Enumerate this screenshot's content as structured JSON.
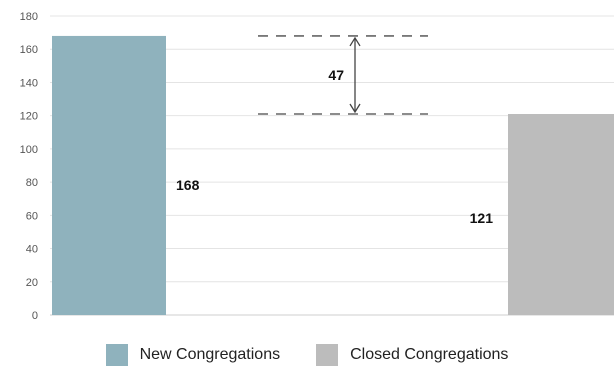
{
  "chart_data": {
    "type": "bar",
    "categories": [
      "New Congregations",
      "Closed Congregations"
    ],
    "values": [
      168,
      121
    ],
    "data_labels": [
      "168",
      "121"
    ],
    "colors": [
      "#8fb2bd",
      "#bcbcbc"
    ],
    "ylim": [
      0,
      180
    ],
    "yticks": [
      "0",
      "20",
      "40",
      "60",
      "80",
      "100",
      "120",
      "140",
      "160",
      "180"
    ],
    "grid": true,
    "legend": {
      "position": "bottom",
      "items": [
        {
          "label": "New Congregations",
          "color": "#8fb2bd"
        },
        {
          "label": "Closed Congregations",
          "color": "#bcbcbc"
        }
      ]
    },
    "annotation": {
      "label": "47",
      "from": 121,
      "to": 168
    }
  }
}
